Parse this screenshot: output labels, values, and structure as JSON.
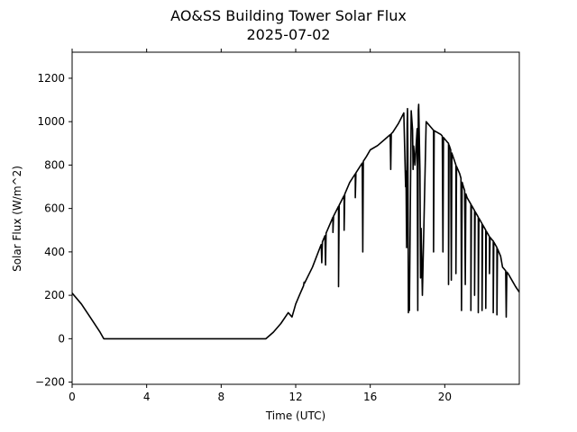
{
  "chart_data": {
    "type": "line",
    "title": "AO&SS Building Tower Solar Flux",
    "subtitle": "2025-07-02",
    "xlabel": "Time (UTC)",
    "ylabel": "Solar Flux (W/m^2)",
    "xlim": [
      0,
      24
    ],
    "ylim": [
      -210,
      1320
    ],
    "xticks": [
      0,
      4,
      8,
      12,
      16,
      20
    ],
    "yticks": [
      -200,
      0,
      200,
      400,
      600,
      800,
      1000,
      1200
    ],
    "grid": false,
    "legend": "none",
    "line_color": "#000000",
    "series": [
      {
        "x": [
          0,
          0.5,
          1.0,
          1.5,
          1.7,
          3,
          6,
          9,
          10.4,
          10.8,
          11.2,
          11.6,
          11.8,
          12.0,
          12.2,
          12.5,
          12.9,
          13.3,
          13.7,
          14.0,
          14.3,
          14.6,
          14.9,
          15.2,
          15.5,
          15.8,
          16.0,
          16.4,
          16.8,
          17.2,
          17.5,
          17.8,
          17.9,
          18.0,
          18.1,
          18.2,
          18.4,
          18.6,
          18.8,
          19.0,
          19.2,
          19.4,
          19.6,
          19.8,
          20.0,
          20.2,
          20.4,
          20.6,
          20.8,
          21.0,
          21.2,
          21.4,
          21.6,
          21.8,
          22.0,
          22.2,
          22.4,
          22.6,
          22.8,
          23.0,
          23.1,
          23.2,
          23.4,
          23.6,
          23.8,
          24.0
        ],
        "y": [
          210,
          160,
          95,
          30,
          0,
          0,
          0,
          0,
          0,
          30,
          70,
          120,
          100,
          160,
          200,
          260,
          330,
          420,
          500,
          560,
          610,
          660,
          720,
          760,
          800,
          840,
          870,
          890,
          920,
          950,
          990,
          1040,
          700,
          1060,
          130,
          1050,
          800,
          1080,
          200,
          1000,
          980,
          960,
          950,
          940,
          920,
          900,
          850,
          800,
          760,
          700,
          650,
          620,
          590,
          560,
          530,
          500,
          470,
          450,
          420,
          380,
          330,
          320,
          300,
          270,
          240,
          215
        ]
      }
    ],
    "dips": [
      {
        "x": 12.45,
        "y": 260
      },
      {
        "x": 13.4,
        "y": 350
      },
      {
        "x": 13.6,
        "y": 340
      },
      {
        "x": 14.0,
        "y": 490
      },
      {
        "x": 14.3,
        "y": 240
      },
      {
        "x": 14.6,
        "y": 500
      },
      {
        "x": 15.2,
        "y": 650
      },
      {
        "x": 15.6,
        "y": 400
      },
      {
        "x": 17.1,
        "y": 780
      },
      {
        "x": 17.95,
        "y": 420
      },
      {
        "x": 18.05,
        "y": 120
      },
      {
        "x": 18.3,
        "y": 780
      },
      {
        "x": 18.55,
        "y": 130
      },
      {
        "x": 18.7,
        "y": 280
      },
      {
        "x": 19.4,
        "y": 400
      },
      {
        "x": 19.9,
        "y": 400
      },
      {
        "x": 20.2,
        "y": 250
      },
      {
        "x": 20.35,
        "y": 270
      },
      {
        "x": 20.6,
        "y": 300
      },
      {
        "x": 20.9,
        "y": 130
      },
      {
        "x": 21.1,
        "y": 250
      },
      {
        "x": 21.4,
        "y": 130
      },
      {
        "x": 21.6,
        "y": 200
      },
      {
        "x": 21.8,
        "y": 120
      },
      {
        "x": 22.0,
        "y": 130
      },
      {
        "x": 22.2,
        "y": 140
      },
      {
        "x": 22.4,
        "y": 300
      },
      {
        "x": 22.6,
        "y": 120
      },
      {
        "x": 22.8,
        "y": 110
      },
      {
        "x": 23.3,
        "y": 100
      }
    ]
  }
}
